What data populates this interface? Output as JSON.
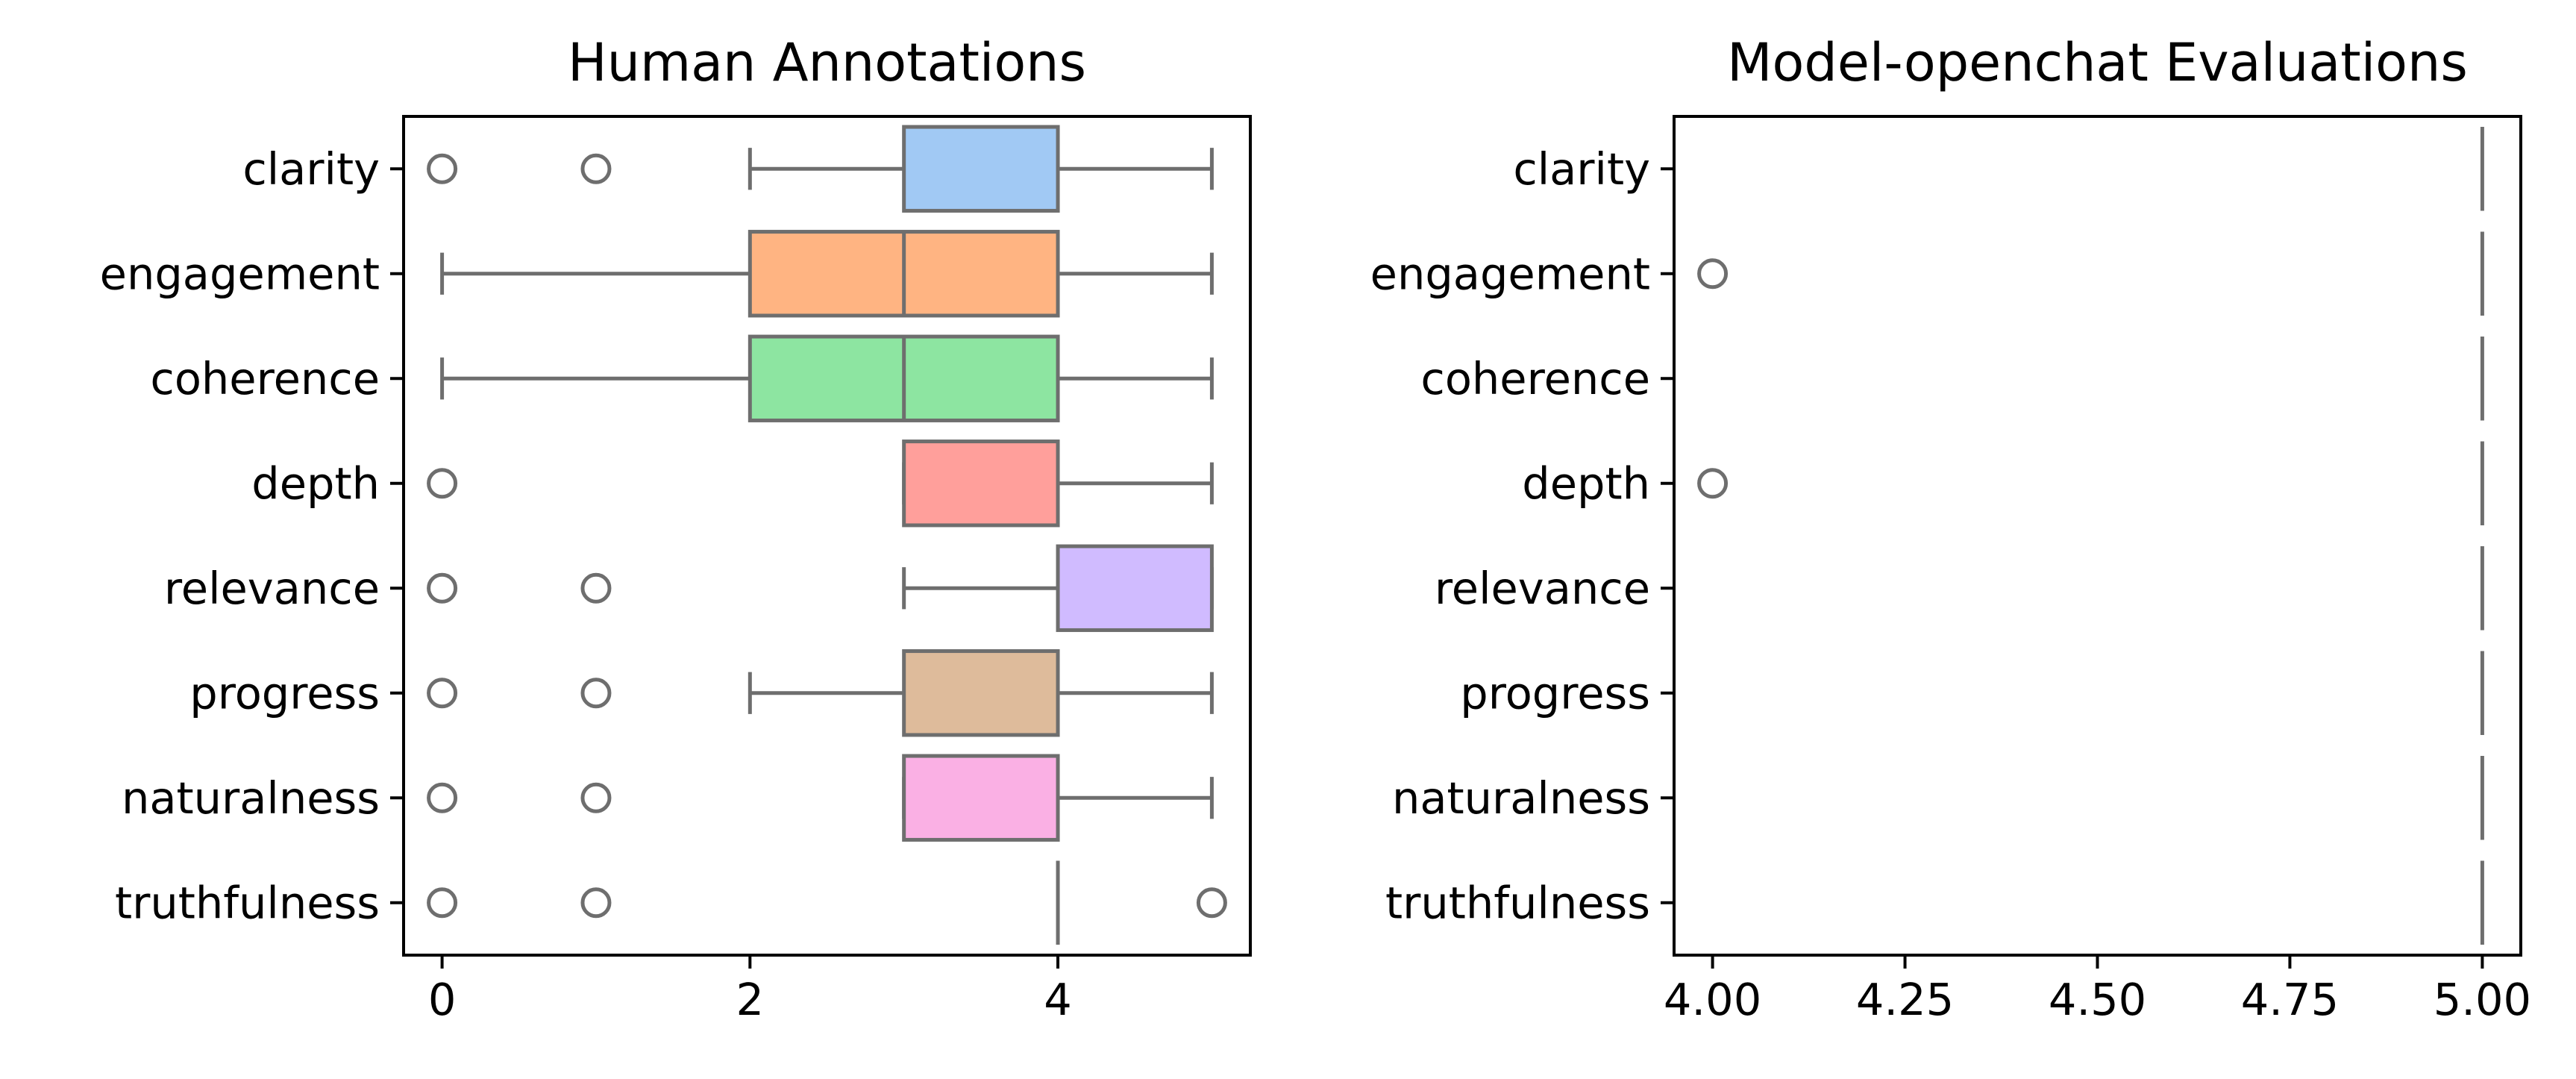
{
  "chart_data": [
    {
      "type": "boxplot",
      "orientation": "horizontal",
      "title": "Human Annotations",
      "xlabel": "",
      "ylabel": "",
      "xlim": [
        -0.25,
        5.25
      ],
      "xticks": [
        0,
        2,
        4
      ],
      "xtick_labels": [
        "0",
        "2",
        "4"
      ],
      "categories": [
        "clarity",
        "engagement",
        "coherence",
        "depth",
        "relevance",
        "progress",
        "naturalness",
        "truthfulness"
      ],
      "colors": [
        "#a1c9f4",
        "#ffb482",
        "#8de5a1",
        "#ff9f9b",
        "#d0bbff",
        "#debb9b",
        "#fab0e4",
        "#cfcfcf"
      ],
      "boxes": [
        {
          "label": "clarity",
          "whisker_low": 2,
          "q1": 3,
          "median": 3,
          "q3": 4,
          "whisker_high": 5,
          "fliers": [
            0,
            1
          ]
        },
        {
          "label": "engagement",
          "whisker_low": 0,
          "q1": 2,
          "median": 3,
          "q3": 4,
          "whisker_high": 5,
          "fliers": []
        },
        {
          "label": "coherence",
          "whisker_low": 0,
          "q1": 2,
          "median": 3,
          "q3": 4,
          "whisker_high": 5,
          "fliers": []
        },
        {
          "label": "depth",
          "whisker_low": 3,
          "q1": 3,
          "median": 3,
          "q3": 4,
          "whisker_high": 5,
          "fliers": [
            0
          ]
        },
        {
          "label": "relevance",
          "whisker_low": 3,
          "q1": 4,
          "median": 4,
          "q3": 5,
          "whisker_high": 5,
          "fliers": [
            0,
            1
          ]
        },
        {
          "label": "progress",
          "whisker_low": 2,
          "q1": 3,
          "median": 3,
          "q3": 4,
          "whisker_high": 5,
          "fliers": [
            0,
            1
          ]
        },
        {
          "label": "naturalness",
          "whisker_low": 3,
          "q1": 3,
          "median": 3,
          "q3": 4,
          "whisker_high": 5,
          "fliers": [
            0,
            1
          ]
        },
        {
          "label": "truthfulness",
          "whisker_low": 4,
          "q1": 4,
          "median": 4,
          "q3": 4,
          "whisker_high": 4,
          "fliers": [
            0,
            1,
            5
          ]
        }
      ]
    },
    {
      "type": "boxplot",
      "orientation": "horizontal",
      "title": "Model-openchat Evaluations",
      "xlabel": "",
      "ylabel": "",
      "xlim": [
        3.95,
        5.05
      ],
      "xticks": [
        4.0,
        4.25,
        4.5,
        4.75,
        5.0
      ],
      "xtick_labels": [
        "4.00",
        "4.25",
        "4.50",
        "4.75",
        "5.00"
      ],
      "categories": [
        "clarity",
        "engagement",
        "coherence",
        "depth",
        "relevance",
        "progress",
        "naturalness",
        "truthfulness"
      ],
      "colors": [
        "#a1c9f4",
        "#ffb482",
        "#8de5a1",
        "#ff9f9b",
        "#d0bbff",
        "#debb9b",
        "#fab0e4",
        "#cfcfcf"
      ],
      "boxes": [
        {
          "label": "clarity",
          "whisker_low": 5,
          "q1": 5,
          "median": 5,
          "q3": 5,
          "whisker_high": 5,
          "fliers": []
        },
        {
          "label": "engagement",
          "whisker_low": 5,
          "q1": 5,
          "median": 5,
          "q3": 5,
          "whisker_high": 5,
          "fliers": [
            4
          ]
        },
        {
          "label": "coherence",
          "whisker_low": 5,
          "q1": 5,
          "median": 5,
          "q3": 5,
          "whisker_high": 5,
          "fliers": []
        },
        {
          "label": "depth",
          "whisker_low": 5,
          "q1": 5,
          "median": 5,
          "q3": 5,
          "whisker_high": 5,
          "fliers": [
            4
          ]
        },
        {
          "label": "relevance",
          "whisker_low": 5,
          "q1": 5,
          "median": 5,
          "q3": 5,
          "whisker_high": 5,
          "fliers": []
        },
        {
          "label": "progress",
          "whisker_low": 5,
          "q1": 5,
          "median": 5,
          "q3": 5,
          "whisker_high": 5,
          "fliers": []
        },
        {
          "label": "naturalness",
          "whisker_low": 5,
          "q1": 5,
          "median": 5,
          "q3": 5,
          "whisker_high": 5,
          "fliers": []
        },
        {
          "label": "truthfulness",
          "whisker_low": 5,
          "q1": 5,
          "median": 5,
          "q3": 5,
          "whisker_high": 5,
          "fliers": []
        }
      ]
    }
  ]
}
